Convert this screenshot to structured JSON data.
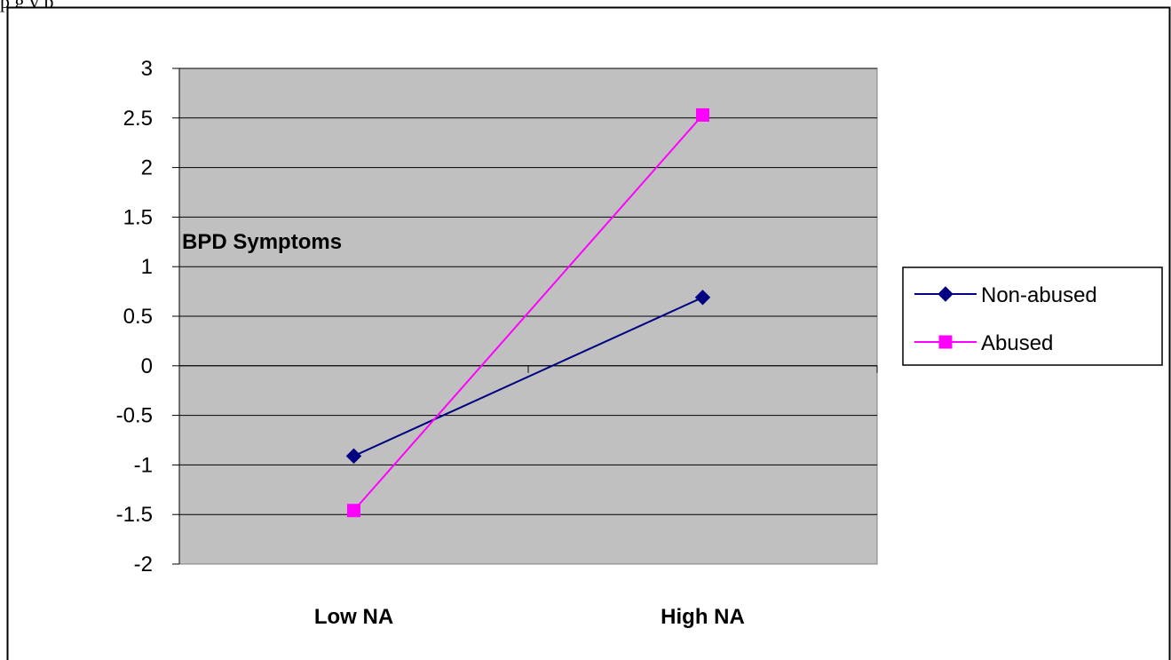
{
  "caption": "p                          g                     y  p",
  "chart_data": {
    "type": "line",
    "categories": [
      "Low NA",
      "High NA"
    ],
    "series": [
      {
        "name": "Non-abused",
        "values": [
          -0.91,
          0.69
        ],
        "color": "#000080",
        "marker": "diamond"
      },
      {
        "name": "Abused",
        "values": [
          -1.46,
          2.53
        ],
        "color": "#FF00FF",
        "marker": "square"
      }
    ],
    "title": "",
    "xlabel": "",
    "ylabel": "BPD Symptoms",
    "ylim": [
      -2,
      3
    ],
    "yticks": [
      "3",
      "2.5",
      "2",
      "1.5",
      "1",
      "0.5",
      "0",
      "-0.5",
      "-1",
      "-1.5",
      "-2"
    ],
    "ytick_values": [
      3,
      2.5,
      2,
      1.5,
      1,
      0.5,
      0,
      -0.5,
      -1,
      -1.5,
      -2
    ],
    "grid": true,
    "plot_background": "#C0C0C0",
    "legend_position": "right"
  }
}
